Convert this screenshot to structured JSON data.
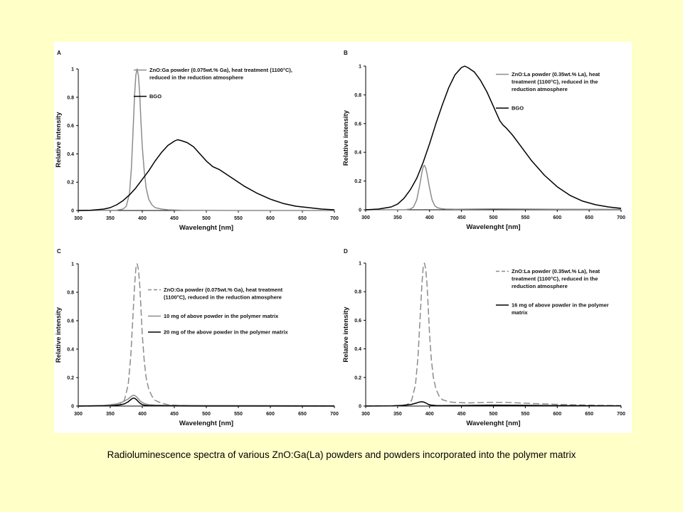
{
  "caption": "Radioluminescence spectra of various ZnO:Ga(La) powders and powders incorporated into the polymer matrix",
  "colors": {
    "black": "#000000",
    "gray": "#8c8c8c",
    "background": "#ffffc8"
  },
  "chart_data": [
    {
      "type": "line",
      "panel": "A",
      "xlabel": "Wavelenght [nm]",
      "ylabel": "Relative intensity",
      "xlim": [
        300,
        700
      ],
      "ylim": [
        0,
        1
      ],
      "xticks": [
        "300",
        "350",
        "400",
        "450",
        "500",
        "550",
        "600",
        "650",
        "700"
      ],
      "yticks": [
        "0",
        "0.2",
        "0.4",
        "0.6",
        "0.8",
        "1"
      ],
      "series": [
        {
          "name": "ZnO:Ga powder (0.075wt.% Ga), heat treatment (1100°C), reduced in the reduction atmosphere",
          "legend_lines": [
            "ZnO:Ga powder (0.075wt.% Ga), heat treatment (1100°C),",
            "reduced in the reduction atmosphere"
          ],
          "color": "#8c8c8c",
          "dash": false,
          "x": [
            300,
            360,
            370,
            375,
            380,
            383,
            385,
            388,
            390,
            392,
            394,
            396,
            398,
            400,
            403,
            406,
            410,
            415,
            420,
            430,
            440,
            460,
            500,
            550,
            600,
            700
          ],
          "y": [
            0,
            0.002,
            0.01,
            0.03,
            0.12,
            0.3,
            0.5,
            0.82,
            0.96,
            1.0,
            0.95,
            0.82,
            0.62,
            0.45,
            0.28,
            0.16,
            0.08,
            0.04,
            0.02,
            0.01,
            0.005,
            0.002,
            0.001,
            0,
            0,
            0
          ]
        },
        {
          "name": "BGO",
          "legend_lines": [
            "BGO"
          ],
          "color": "#000000",
          "dash": false,
          "x": [
            300,
            320,
            340,
            350,
            360,
            370,
            380,
            390,
            400,
            410,
            420,
            430,
            440,
            450,
            455,
            460,
            470,
            480,
            490,
            500,
            510,
            515,
            520,
            530,
            540,
            550,
            560,
            580,
            600,
            620,
            640,
            660,
            680,
            700
          ],
          "y": [
            0,
            0.002,
            0.01,
            0.02,
            0.04,
            0.07,
            0.11,
            0.16,
            0.22,
            0.28,
            0.35,
            0.41,
            0.46,
            0.49,
            0.5,
            0.495,
            0.48,
            0.45,
            0.4,
            0.35,
            0.31,
            0.3,
            0.29,
            0.26,
            0.23,
            0.2,
            0.17,
            0.12,
            0.08,
            0.05,
            0.03,
            0.02,
            0.01,
            0.005
          ]
        }
      ]
    },
    {
      "type": "line",
      "panel": "B",
      "xlabel": "Wavelenght [nm]",
      "ylabel": "Relative intensity",
      "xlim": [
        300,
        700
      ],
      "ylim": [
        0,
        1
      ],
      "xticks": [
        "300",
        "350",
        "400",
        "450",
        "500",
        "550",
        "600",
        "650",
        "700"
      ],
      "yticks": [
        "0",
        "0.2",
        "0.4",
        "0.6",
        "0.8",
        "1"
      ],
      "series": [
        {
          "name": "ZnO:La powder (0.35wt.% La), heat treatment (1100°C), reduced in the reduction atmosphere",
          "legend_lines": [
            "ZnO:La powder (0.35wt.% La), heat",
            "treatment (1100°C), reduced in the",
            "reduction atmosphere"
          ],
          "color": "#8c8c8c",
          "dash": false,
          "x": [
            300,
            360,
            370,
            375,
            380,
            385,
            388,
            390,
            392,
            394,
            396,
            400,
            404,
            408,
            412,
            418,
            425,
            440,
            500,
            600,
            700
          ],
          "y": [
            0,
            0,
            0.005,
            0.02,
            0.07,
            0.18,
            0.26,
            0.3,
            0.31,
            0.29,
            0.25,
            0.15,
            0.07,
            0.03,
            0.015,
            0.008,
            0.005,
            0.004,
            0.006,
            0.004,
            0.003
          ]
        },
        {
          "name": "BGO",
          "legend_lines": [
            "BGO"
          ],
          "color": "#000000",
          "dash": false,
          "x": [
            300,
            320,
            340,
            350,
            360,
            370,
            380,
            390,
            400,
            410,
            420,
            430,
            440,
            450,
            455,
            460,
            470,
            480,
            490,
            500,
            510,
            515,
            520,
            530,
            540,
            550,
            560,
            580,
            600,
            620,
            640,
            660,
            680,
            700
          ],
          "y": [
            0,
            0.005,
            0.02,
            0.04,
            0.08,
            0.14,
            0.22,
            0.33,
            0.46,
            0.6,
            0.73,
            0.85,
            0.94,
            0.99,
            1.0,
            0.99,
            0.96,
            0.9,
            0.82,
            0.72,
            0.62,
            0.59,
            0.57,
            0.52,
            0.46,
            0.4,
            0.34,
            0.24,
            0.16,
            0.1,
            0.06,
            0.035,
            0.02,
            0.01
          ]
        }
      ]
    },
    {
      "type": "line",
      "panel": "C",
      "xlabel": "Wavelenght [nm]",
      "ylabel": "Relative intensity",
      "xlim": [
        300,
        700
      ],
      "ylim": [
        0,
        1
      ],
      "xticks": [
        "300",
        "350",
        "400",
        "450",
        "500",
        "550",
        "600",
        "650",
        "700"
      ],
      "yticks": [
        "0",
        "0.2",
        "0.4",
        "0.6",
        "0.8",
        "1"
      ],
      "series": [
        {
          "name": "ZnO:Ga powder (0.075wt.% Ga), heat treatment (1100°C), reduced in the reduction atmosphere",
          "legend_lines": [
            "ZnO:Ga powder (0.075wt.% Ga), heat treatment",
            "(1100°C), reduced in the reduction atmosphere"
          ],
          "color": "#8c8c8c",
          "dash": true,
          "x": [
            300,
            350,
            365,
            372,
            378,
            382,
            385,
            388,
            390,
            392,
            394,
            396,
            398,
            400,
            403,
            406,
            410,
            415,
            420,
            430,
            440,
            460,
            500,
            600,
            700
          ],
          "y": [
            0,
            0.002,
            0.01,
            0.04,
            0.15,
            0.35,
            0.6,
            0.85,
            0.97,
            1.0,
            0.96,
            0.85,
            0.68,
            0.5,
            0.32,
            0.2,
            0.12,
            0.07,
            0.04,
            0.02,
            0.01,
            0.005,
            0.002,
            0.001,
            0
          ]
        },
        {
          "name": "10 mg of above powder in the polymer matrix",
          "legend_lines": [
            "10 mg of above powder in the polymer matrix"
          ],
          "color": "#8c8c8c",
          "dash": false,
          "x": [
            300,
            340,
            360,
            370,
            378,
            382,
            385,
            388,
            391,
            394,
            397,
            400,
            405,
            410,
            420,
            440,
            500,
            600,
            700
          ],
          "y": [
            0,
            0.005,
            0.015,
            0.03,
            0.05,
            0.065,
            0.075,
            0.075,
            0.065,
            0.05,
            0.035,
            0.025,
            0.015,
            0.01,
            0.007,
            0.005,
            0.004,
            0.003,
            0.002
          ]
        },
        {
          "name": "20 mg of the above powder in the polymer matrix",
          "legend_lines": [
            "20 mg of the above powder in the polymer matrix"
          ],
          "color": "#000000",
          "dash": false,
          "x": [
            300,
            350,
            365,
            372,
            378,
            382,
            385,
            388,
            391,
            394,
            397,
            400,
            405,
            410,
            420,
            440,
            500,
            700
          ],
          "y": [
            0,
            0.002,
            0.008,
            0.015,
            0.03,
            0.045,
            0.055,
            0.055,
            0.045,
            0.03,
            0.018,
            0.01,
            0.005,
            0.003,
            0.002,
            0.001,
            0,
            0
          ]
        }
      ]
    },
    {
      "type": "line",
      "panel": "D",
      "xlabel": "Wavelenght [nm]",
      "ylabel": "Relative intensity",
      "xlim": [
        300,
        700
      ],
      "ylim": [
        0,
        1
      ],
      "xticks": [
        "300",
        "350",
        "400",
        "450",
        "500",
        "550",
        "600",
        "650",
        "700"
      ],
      "yticks": [
        "0",
        "0.2",
        "0.4",
        "0.6",
        "0.8",
        "1"
      ],
      "series": [
        {
          "name": "ZnO:La powder (0.35wt.% La), heat treatment (1100°C), reduced in the reduction atmosphere",
          "legend_lines": [
            "ZnO:La powder (0.35wt.% La), heat",
            "treatment (1100°C), reduced in the",
            "reduction atmosphere"
          ],
          "color": "#8c8c8c",
          "dash": true,
          "x": [
            300,
            350,
            365,
            372,
            378,
            382,
            385,
            388,
            390,
            392,
            394,
            396,
            398,
            400,
            403,
            406,
            410,
            415,
            420,
            430,
            440,
            460,
            480,
            500,
            520,
            540,
            560,
            600,
            650,
            700
          ],
          "y": [
            0,
            0.002,
            0.01,
            0.04,
            0.15,
            0.35,
            0.6,
            0.85,
            0.97,
            1.0,
            0.96,
            0.85,
            0.68,
            0.5,
            0.32,
            0.2,
            0.12,
            0.07,
            0.045,
            0.03,
            0.025,
            0.022,
            0.024,
            0.026,
            0.025,
            0.022,
            0.018,
            0.012,
            0.006,
            0.003
          ]
        },
        {
          "name": "16 mg of above powder in the polymer matrix",
          "legend_lines": [
            "16 mg of above powder in the polymer",
            "matrix"
          ],
          "color": "#000000",
          "dash": false,
          "x": [
            300,
            340,
            360,
            372,
            380,
            384,
            388,
            391,
            394,
            398,
            402,
            410,
            420,
            450,
            500,
            550,
            600,
            700
          ],
          "y": [
            0,
            0.001,
            0.005,
            0.012,
            0.022,
            0.028,
            0.03,
            0.028,
            0.022,
            0.012,
            0.007,
            0.004,
            0.003,
            0.004,
            0.006,
            0.005,
            0.003,
            0.001
          ]
        }
      ]
    }
  ]
}
